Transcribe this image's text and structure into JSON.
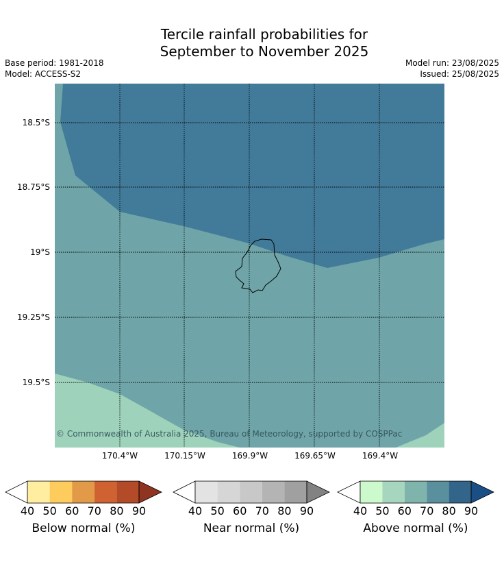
{
  "header": {
    "title_line1": "Tercile rainfall probabilities for",
    "title_line2": "September to November 2025",
    "base_period": "Base period: 1981-2018",
    "model": "Model: ACCESS-S2",
    "model_run": "Model run: 23/08/2025",
    "issued": "Issued: 25/08/2025"
  },
  "map": {
    "lat_labels": [
      "18.5°S",
      "18.75°S",
      "19°S",
      "19.25°S",
      "19.5°S"
    ],
    "lon_labels": [
      "170.4°W",
      "170.15°W",
      "169.9°W",
      "169.65°W",
      "169.4°W"
    ],
    "copyright": "© Commonwealth of Australia 2025, Bureau of Meteorology, supported by COSPPac",
    "zones": [
      {
        "category": "Above normal",
        "range": "60-70",
        "color": "#6fa5a8"
      },
      {
        "category": "Above normal",
        "range": "70-80",
        "color": "#427b99"
      },
      {
        "category": "Above normal",
        "range": "50-60",
        "color": "#9ed2bb"
      }
    ]
  },
  "colorbars": [
    {
      "label": "Below normal (%)",
      "ticks": [
        "40",
        "50",
        "60",
        "70",
        "80",
        "90"
      ],
      "colors": [
        "#ffeda0",
        "#fecc5c",
        "#e39a48",
        "#cf6230",
        "#b34a28",
        "#8f3420"
      ]
    },
    {
      "label": "Near normal (%)",
      "ticks": [
        "40",
        "50",
        "60",
        "70",
        "80",
        "90"
      ],
      "colors": [
        "#e3e3e3",
        "#d6d6d6",
        "#c8c8c8",
        "#b4b4b4",
        "#a0a0a0",
        "#828282"
      ]
    },
    {
      "label": "Above normal (%)",
      "ticks": [
        "40",
        "50",
        "60",
        "70",
        "80",
        "90"
      ],
      "colors": [
        "#ccfacc",
        "#a6d6be",
        "#7fb4ac",
        "#5a8f9e",
        "#33658b",
        "#1a4f86"
      ]
    }
  ]
}
